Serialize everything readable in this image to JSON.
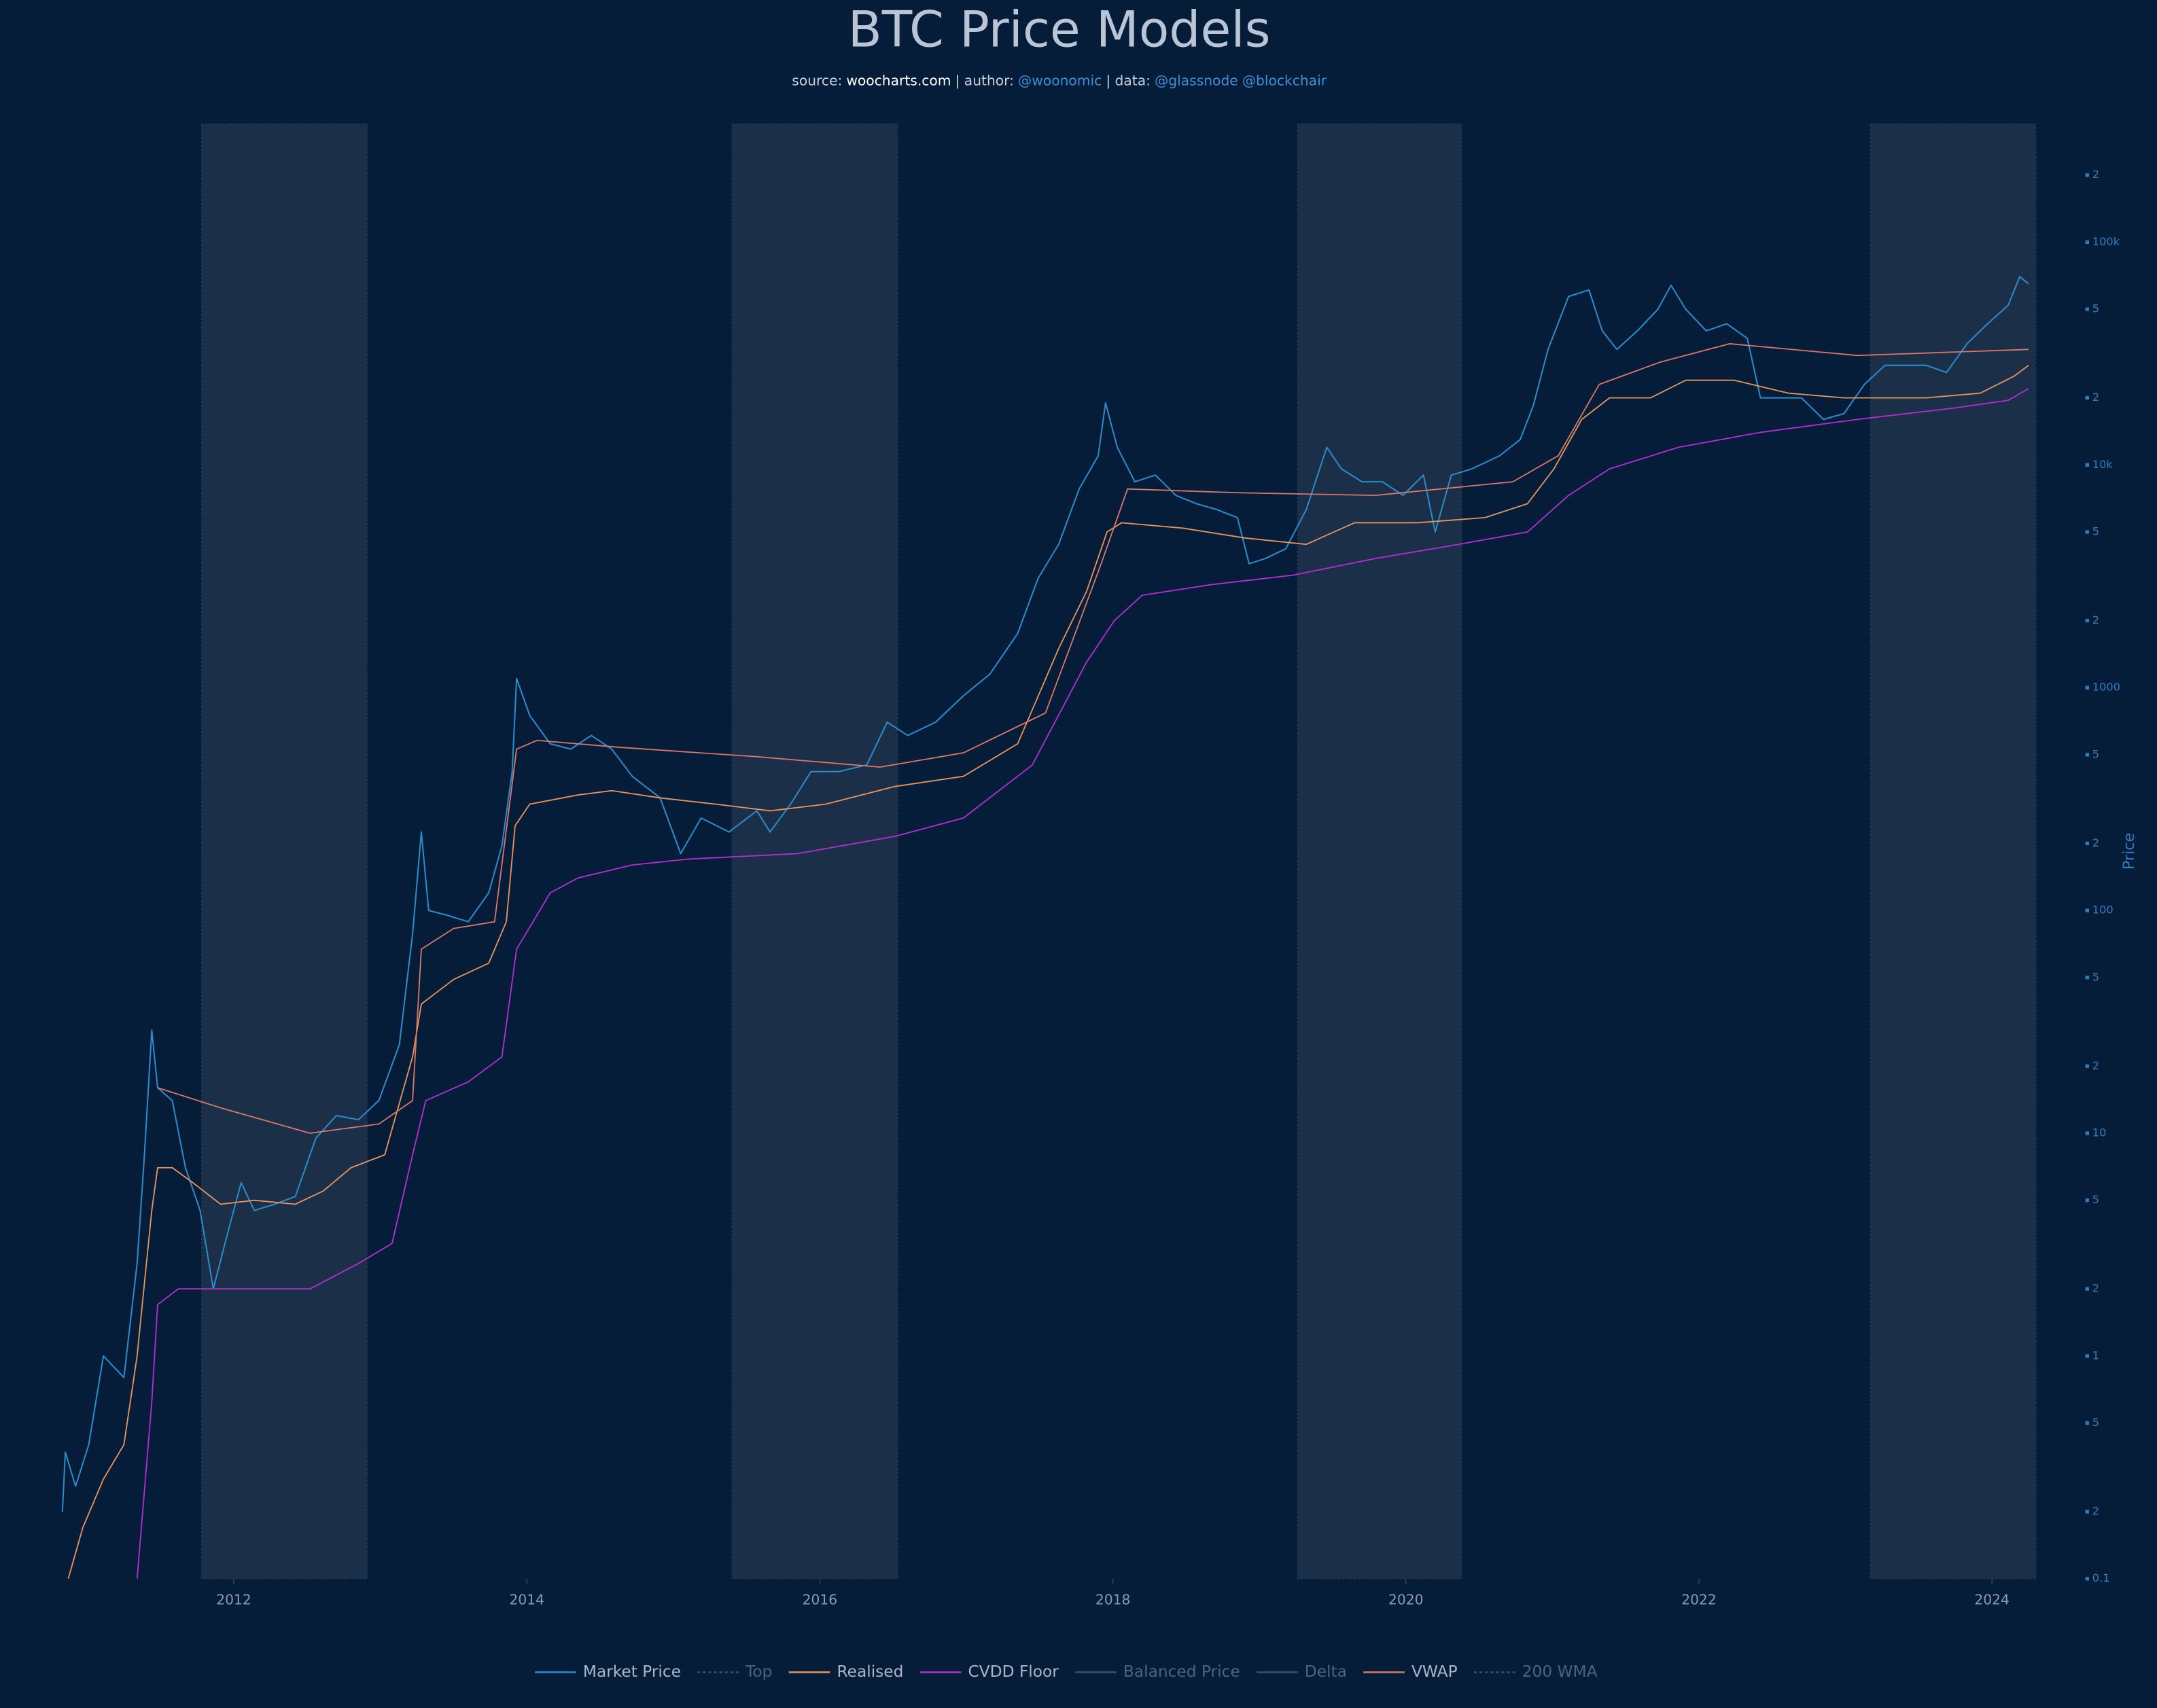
{
  "chart_data": {
    "type": "line",
    "title": "BTC Price Models",
    "subtitle": [
      {
        "text": "source:",
        "color": "#c9d1dc"
      },
      {
        "text": "woocharts.com",
        "color": "#ffffff"
      },
      {
        "text": "| author:",
        "color": "#c9d1dc"
      },
      {
        "text": "@woonomic",
        "color": "#3d8fd6"
      },
      {
        "text": "| data:",
        "color": "#c9d1dc"
      },
      {
        "text": "@glassnode",
        "color": "#3d8fd6"
      },
      {
        "text": "@blockchair",
        "color": "#3d8fd6"
      }
    ],
    "y_label": "Price",
    "log_y": true,
    "xlim": [
      2010.78,
      2024.3
    ],
    "ylim": [
      0.1,
      340000
    ],
    "xticks": [
      2012,
      2014,
      2016,
      2018,
      2020,
      2022,
      2024
    ],
    "yticks": [
      0.1,
      {
        "value": 0.2,
        "label": "2"
      },
      {
        "value": 0.5,
        "label": "5"
      },
      1,
      {
        "value": 2,
        "label": "2"
      },
      5,
      10,
      {
        "value": 20,
        "label": "2"
      },
      {
        "value": 50,
        "label": "5"
      },
      100,
      {
        "value": 200,
        "label": "2"
      },
      {
        "value": 500,
        "label": "5"
      },
      1000,
      {
        "value": 2000,
        "label": "2"
      },
      {
        "value": 5000,
        "label": "5"
      },
      {
        "value": 10000,
        "label": "10k"
      },
      {
        "value": 20000,
        "label": "2"
      },
      {
        "value": 50000,
        "label": "5"
      },
      {
        "value": 100000,
        "label": "100k"
      },
      {
        "value": 200000,
        "label": "2"
      }
    ],
    "shaded_regions": [
      [
        2011.78,
        2012.91
      ],
      [
        2015.4,
        2016.53
      ],
      [
        2019.26,
        2020.38
      ],
      [
        2023.17,
        2024.3
      ]
    ],
    "legend": "bottom",
    "series": [
      {
        "name": "Market Price",
        "color": "#2b8ccc",
        "visible": true,
        "x": [
          2010.83,
          2010.85,
          2010.92,
          2011.01,
          2011.11,
          2011.25,
          2011.34,
          2011.39,
          2011.44,
          2011.48,
          2011.58,
          2011.67,
          2011.77,
          2011.86,
          2011.95,
          2012.05,
          2012.14,
          2012.28,
          2012.42,
          2012.56,
          2012.7,
          2012.85,
          2012.99,
          2013.13,
          2013.22,
          2013.28,
          2013.33,
          2013.46,
          2013.6,
          2013.74,
          2013.83,
          2013.9,
          2013.93,
          2014.02,
          2014.16,
          2014.3,
          2014.44,
          2014.58,
          2014.72,
          2014.91,
          2015.05,
          2015.19,
          2015.38,
          2015.57,
          2015.66,
          2015.8,
          2015.94,
          2016.13,
          2016.32,
          2016.46,
          2016.6,
          2016.79,
          2016.98,
          2017.16,
          2017.35,
          2017.49,
          2017.63,
          2017.77,
          2017.9,
          2017.95,
          2018.03,
          2018.15,
          2018.29,
          2018.43,
          2018.57,
          2018.71,
          2018.85,
          2018.93,
          2019.04,
          2019.18,
          2019.32,
          2019.46,
          2019.56,
          2019.7,
          2019.84,
          2019.98,
          2020.12,
          2020.2,
          2020.31,
          2020.45,
          2020.64,
          2020.78,
          2020.87,
          2020.97,
          2021.11,
          2021.25,
          2021.34,
          2021.44,
          2021.58,
          2021.72,
          2021.81,
          2021.91,
          2022.05,
          2022.19,
          2022.33,
          2022.42,
          2022.52,
          2022.7,
          2022.85,
          2022.99,
          2023.13,
          2023.27,
          2023.41,
          2023.55,
          2023.69,
          2023.83,
          2023.97,
          2024.11,
          2024.19,
          2024.25
        ],
        "values": [
          0.2,
          0.37,
          0.26,
          0.4,
          1.0,
          0.8,
          2.6,
          8,
          29,
          16,
          14,
          7,
          4.5,
          2,
          3.4,
          6,
          4.5,
          4.8,
          5.2,
          9.5,
          12,
          11.5,
          14,
          25,
          78,
          225,
          100,
          95,
          89,
          120,
          195,
          420,
          1100,
          750,
          560,
          530,
          610,
          530,
          400,
          320,
          180,
          260,
          225,
          280,
          225,
          300,
          420,
          420,
          450,
          700,
          610,
          700,
          920,
          1150,
          1750,
          3100,
          4400,
          7800,
          11000,
          19000,
          12000,
          8400,
          9000,
          7300,
          6700,
          6300,
          5800,
          3600,
          3800,
          4200,
          6300,
          12000,
          9600,
          8400,
          8400,
          7300,
          9000,
          5000,
          9000,
          9600,
          11000,
          13000,
          18500,
          33000,
          57000,
          61000,
          40000,
          33000,
          40000,
          50000,
          64000,
          50000,
          40000,
          43000,
          37000,
          20000,
          20000,
          20000,
          16000,
          17000,
          23000,
          28000,
          28000,
          28000,
          26000,
          35000,
          43000,
          52000,
          70000,
          65000
        ]
      },
      {
        "name": "Top",
        "color": "#3f6f86",
        "visible": false,
        "dash": true
      },
      {
        "name": "Realised",
        "color": "#e8955a",
        "visible": true,
        "x": [
          2010.87,
          2010.97,
          2011.11,
          2011.25,
          2011.34,
          2011.44,
          2011.48,
          2011.58,
          2011.72,
          2011.91,
          2012.14,
          2012.42,
          2012.61,
          2012.8,
          2013.03,
          2013.22,
          2013.28,
          2013.5,
          2013.74,
          2013.86,
          2013.92,
          2014.02,
          2014.35,
          2014.58,
          2014.91,
          2015.29,
          2015.66,
          2016.04,
          2016.51,
          2016.98,
          2017.35,
          2017.63,
          2017.82,
          2017.96,
          2018.06,
          2018.48,
          2018.9,
          2019.32,
          2019.65,
          2020.08,
          2020.54,
          2020.83,
          2021.01,
          2021.2,
          2021.39,
          2021.67,
          2021.91,
          2022.24,
          2022.61,
          2022.99,
          2023.55,
          2023.92,
          2024.15,
          2024.25
        ],
        "values": [
          0.1,
          0.17,
          0.28,
          0.4,
          1.0,
          4.5,
          7,
          7,
          6,
          4.8,
          5,
          4.8,
          5.5,
          7,
          8,
          22,
          38,
          49,
          58,
          89,
          240,
          300,
          330,
          345,
          320,
          300,
          280,
          300,
          360,
          400,
          560,
          1500,
          2700,
          5000,
          5500,
          5200,
          4700,
          4400,
          5500,
          5500,
          5800,
          6700,
          9600,
          16000,
          20000,
          20000,
          24000,
          24000,
          21000,
          20000,
          20000,
          21000,
          25000,
          28000
        ]
      },
      {
        "name": "CVDD Floor",
        "color": "#b42fd0",
        "visible": true,
        "x": [
          2011.34,
          2011.44,
          2011.48,
          2011.62,
          2012.0,
          2012.52,
          2012.85,
          2013.08,
          2013.22,
          2013.31,
          2013.6,
          2013.83,
          2013.93,
          2014.16,
          2014.35,
          2014.72,
          2015.1,
          2015.85,
          2016.51,
          2016.98,
          2017.45,
          2017.82,
          2018.01,
          2018.2,
          2018.67,
          2019.23,
          2019.79,
          2020.36,
          2020.83,
          2021.11,
          2021.39,
          2021.86,
          2022.42,
          2023.08,
          2023.74,
          2024.11,
          2024.25
        ],
        "values": [
          0.1,
          0.62,
          1.7,
          2,
          2,
          2,
          2.6,
          3.2,
          8,
          14,
          17,
          22,
          67,
          120,
          140,
          160,
          170,
          180,
          215,
          260,
          450,
          1300,
          2000,
          2600,
          2900,
          3200,
          3800,
          4400,
          5000,
          7300,
          9600,
          12000,
          14000,
          16000,
          18000,
          19500,
          22000
        ]
      },
      {
        "name": "Balanced Price",
        "color": "#2f6f7f",
        "visible": false
      },
      {
        "name": "Delta",
        "color": "#4b5b6b",
        "visible": false
      },
      {
        "name": "VWAP",
        "color": "#d9776a",
        "visible": true,
        "x": [
          2011.48,
          2011.91,
          2012.52,
          2012.99,
          2013.22,
          2013.28,
          2013.5,
          2013.78,
          2013.93,
          2014.07,
          2014.63,
          2015.57,
          2016.41,
          2016.98,
          2017.54,
          2017.92,
          2018.1,
          2018.85,
          2019.79,
          2020.73,
          2021.04,
          2021.32,
          2021.74,
          2022.21,
          2023.08,
          2024.25
        ],
        "values": [
          16,
          13,
          10,
          11,
          14,
          67,
          83,
          89,
          530,
          580,
          540,
          490,
          440,
          510,
          770,
          3600,
          7800,
          7500,
          7300,
          8400,
          11000,
          23000,
          29000,
          35000,
          31000,
          33000
        ]
      },
      {
        "name": "200 WMA",
        "color": "#4b6b8b",
        "visible": false,
        "dash": true
      }
    ]
  }
}
